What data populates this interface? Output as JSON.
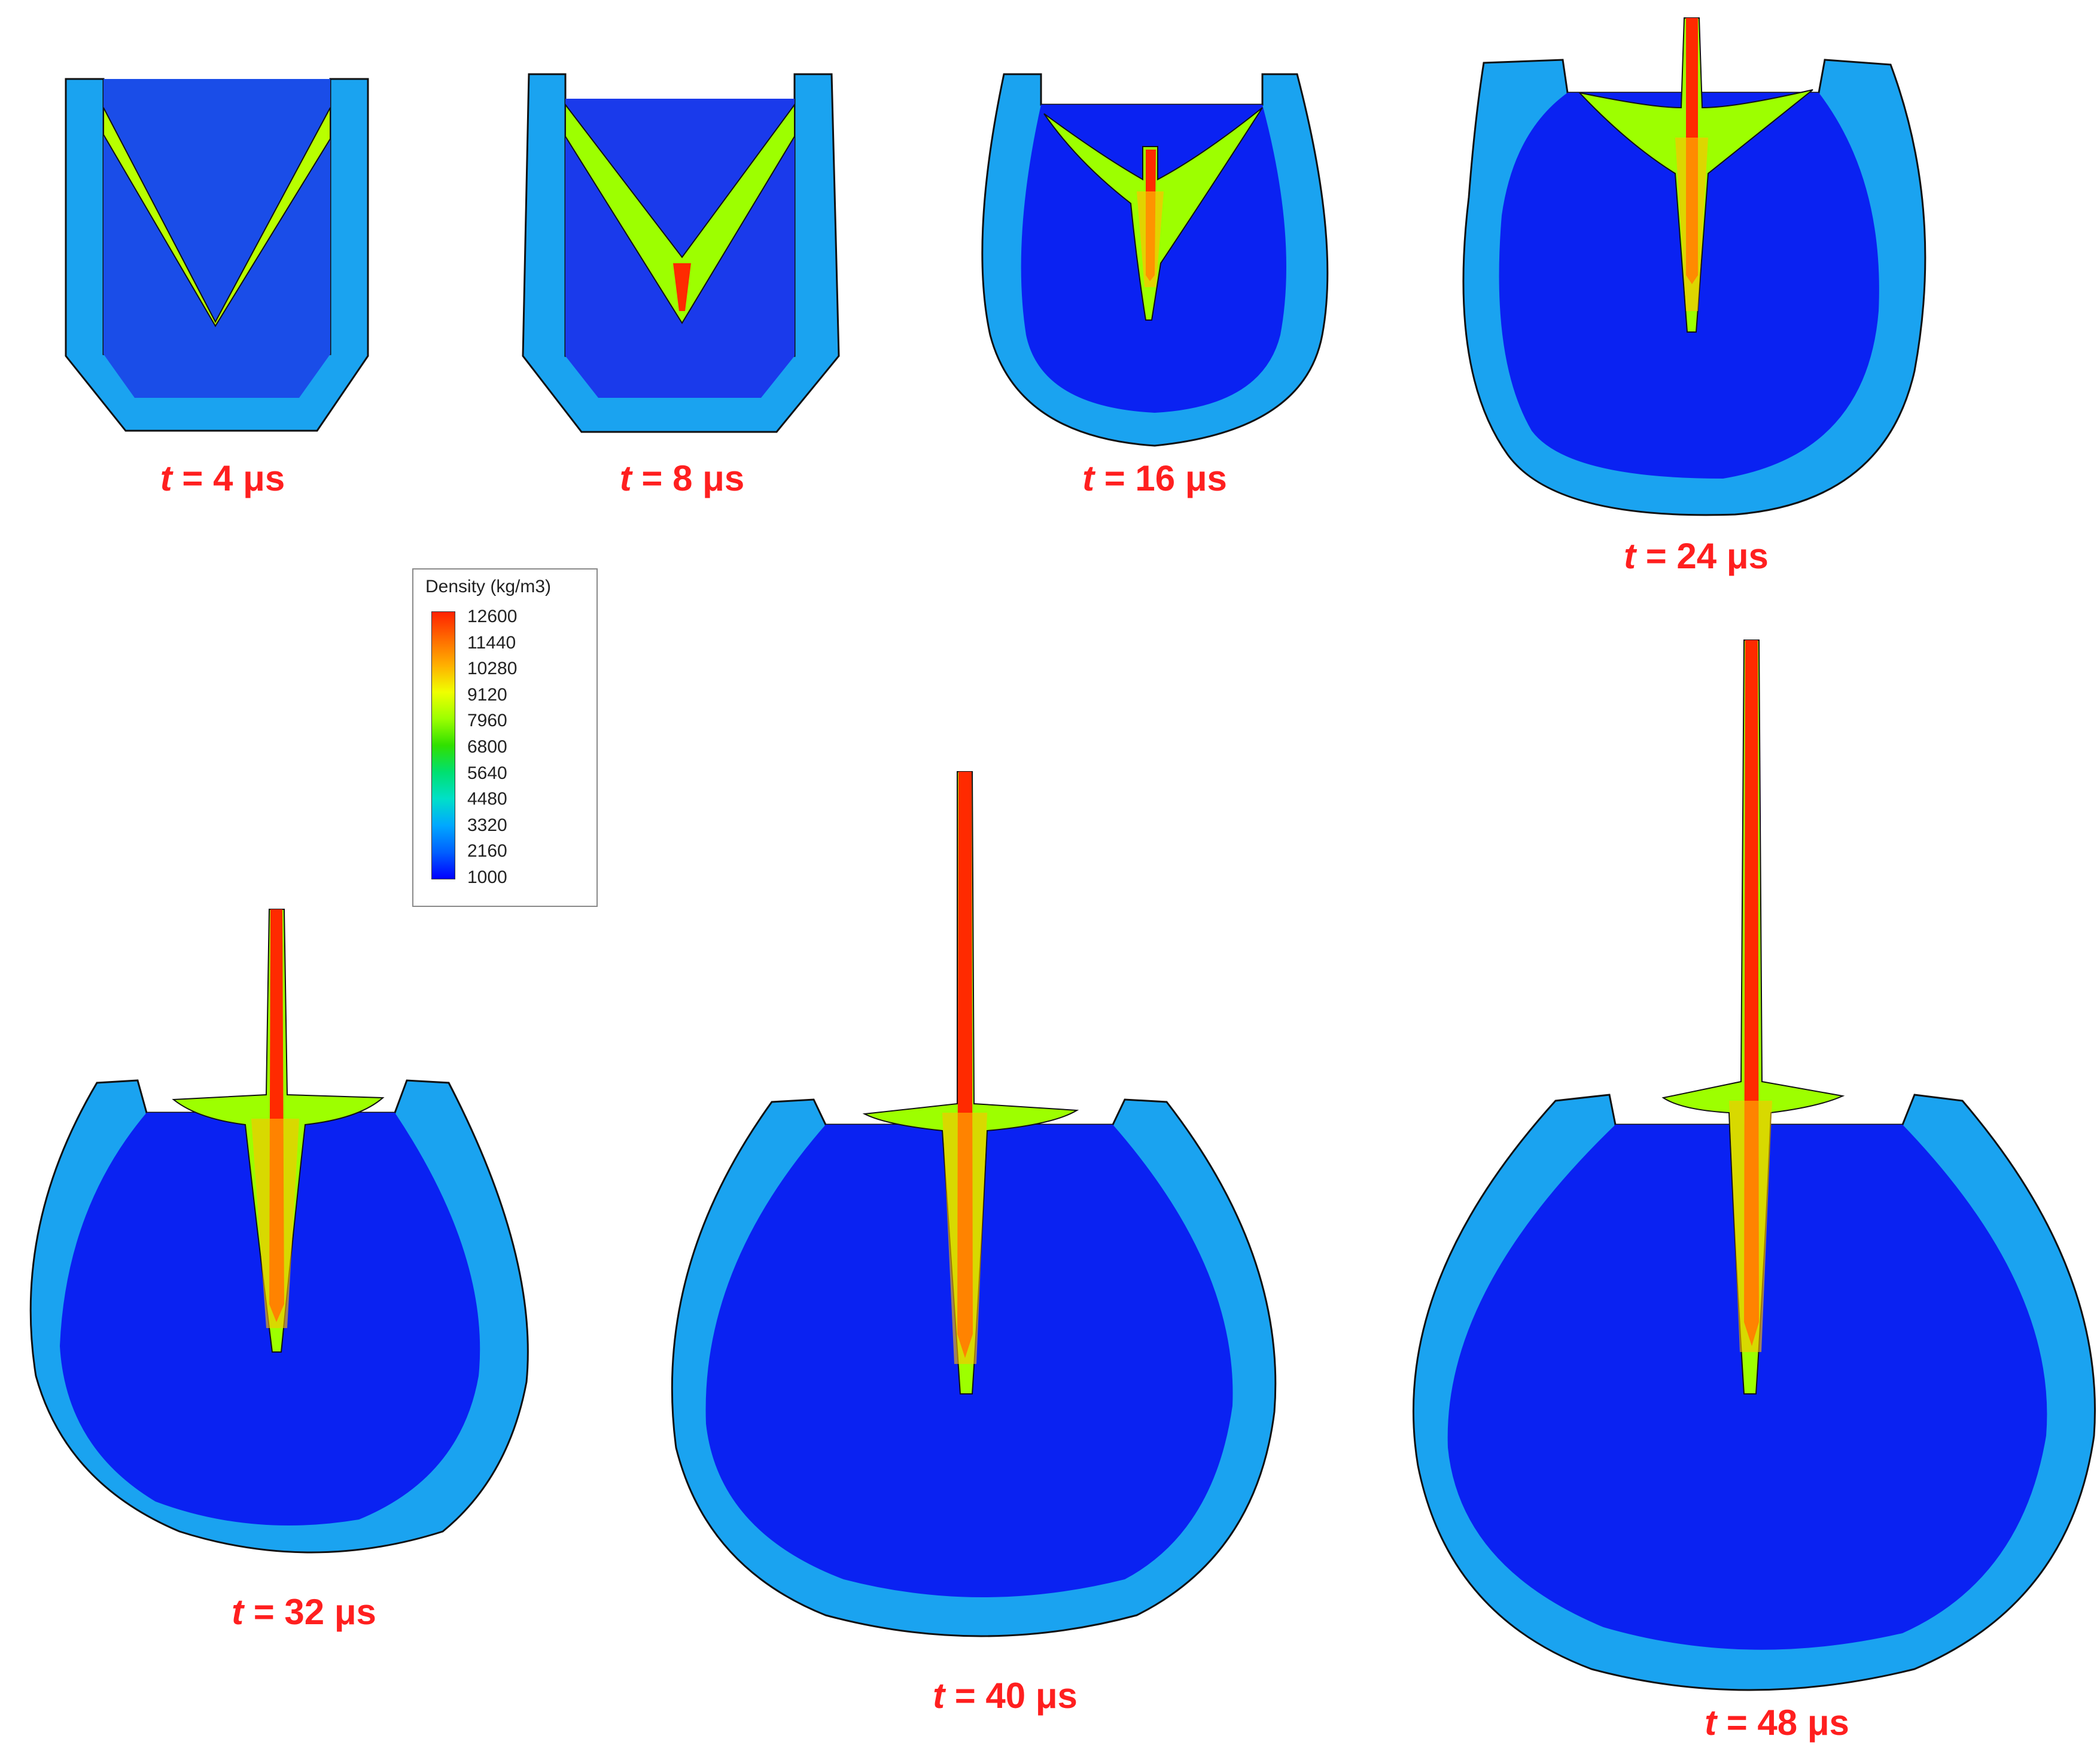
{
  "frames": [
    {
      "time_var": "t",
      "time_text": "= 4 μs"
    },
    {
      "time_var": "t",
      "time_text": "= 8 μs"
    },
    {
      "time_var": "t",
      "time_text": "= 16 μs"
    },
    {
      "time_var": "t",
      "time_text": "= 24 μs"
    },
    {
      "time_var": "t",
      "time_text": "= 32 μs"
    },
    {
      "time_var": "t",
      "time_text": "= 40 μs"
    },
    {
      "time_var": "t",
      "time_text": "= 48 μs"
    }
  ],
  "legend": {
    "title": "Density (kg/m3)",
    "ticks": [
      "12600",
      "11440",
      "10280",
      "9120",
      "7960",
      "6800",
      "5640",
      "4480",
      "3320",
      "2160",
      "1000"
    ]
  },
  "colors": {
    "liner_case": "#1aa3f0",
    "explosive_fill": "#0a22f2",
    "jet_core": "#ff2a00",
    "jet_mid": "#ffc000",
    "jet_outer": "#88ff00",
    "caption": "#ff1f1f"
  }
}
